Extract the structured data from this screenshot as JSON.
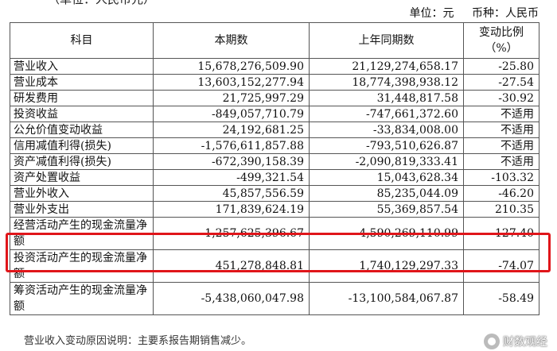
{
  "header": {
    "top_cut_text": "（单位：人民币元）",
    "unit_label": "单位：元",
    "currency_label": "币种：人民币"
  },
  "table": {
    "columns": [
      "科目",
      "本期数",
      "上年同期数",
      "变动比例",
      "（%）"
    ],
    "rows": [
      {
        "item": "营业收入",
        "current": "15,678,276,509.90",
        "prior": "21,129,274,658.17",
        "change": "-25.80"
      },
      {
        "item": "营业成本",
        "current": "13,603,152,277.94",
        "prior": "18,774,398,938.12",
        "change": "-27.54"
      },
      {
        "item": "研发费用",
        "current": "21,725,997.29",
        "prior": "31,448,817.58",
        "change": "-30.92"
      },
      {
        "item": "投资收益",
        "current": "-849,057,710.79",
        "prior": "-747,661,372.60",
        "change": "不适用"
      },
      {
        "item": "公允价值变动收益",
        "current": "24,192,681.25",
        "prior": "-33,834,008.00",
        "change": "不适用"
      },
      {
        "item": "信用减值利得(损失)",
        "current": "-1,576,611,857.88",
        "prior": "-793,510,626.87",
        "change": "不适用"
      },
      {
        "item": "资产减值利得(损失)",
        "current": "-672,390,158.39",
        "prior": "-2,090,819,333.41",
        "change": "不适用"
      },
      {
        "item": "资产处置收益",
        "current": "-499,321.54",
        "prior": "15,043,628.34",
        "change": "-103.32"
      },
      {
        "item": "营业外收入",
        "current": "45,857,556.59",
        "prior": "85,235,044.09",
        "change": "-46.20"
      },
      {
        "item": "营业外支出",
        "current": "171,839,624.19",
        "prior": "55,369,857.54",
        "change": "210.35"
      },
      {
        "item": "经营活动产生的现金流量净额",
        "current": "-1,257,625,396.67",
        "prior": "4,590,269,110.99",
        "change": "-127.40"
      },
      {
        "item": "投资活动产生的现金流量净额",
        "current": "451,278,848.81",
        "prior": "1,740,129,297.33",
        "change": "-74.07"
      },
      {
        "item": "筹资活动产生的现金流量净额",
        "current": "-5,438,060,047.98",
        "prior": "-13,100,584,067.87",
        "change": "-58.49"
      }
    ]
  },
  "highlight": {
    "row_item": "经营活动产生的现金流量净额",
    "color": "#e0151a"
  },
  "footer": {
    "bottom_cut_text": "营业收入变动原因说明：主要系报告期销售减少。"
  },
  "watermark": {
    "text": "财数观经",
    "icon": "watermark-logo-icon"
  }
}
